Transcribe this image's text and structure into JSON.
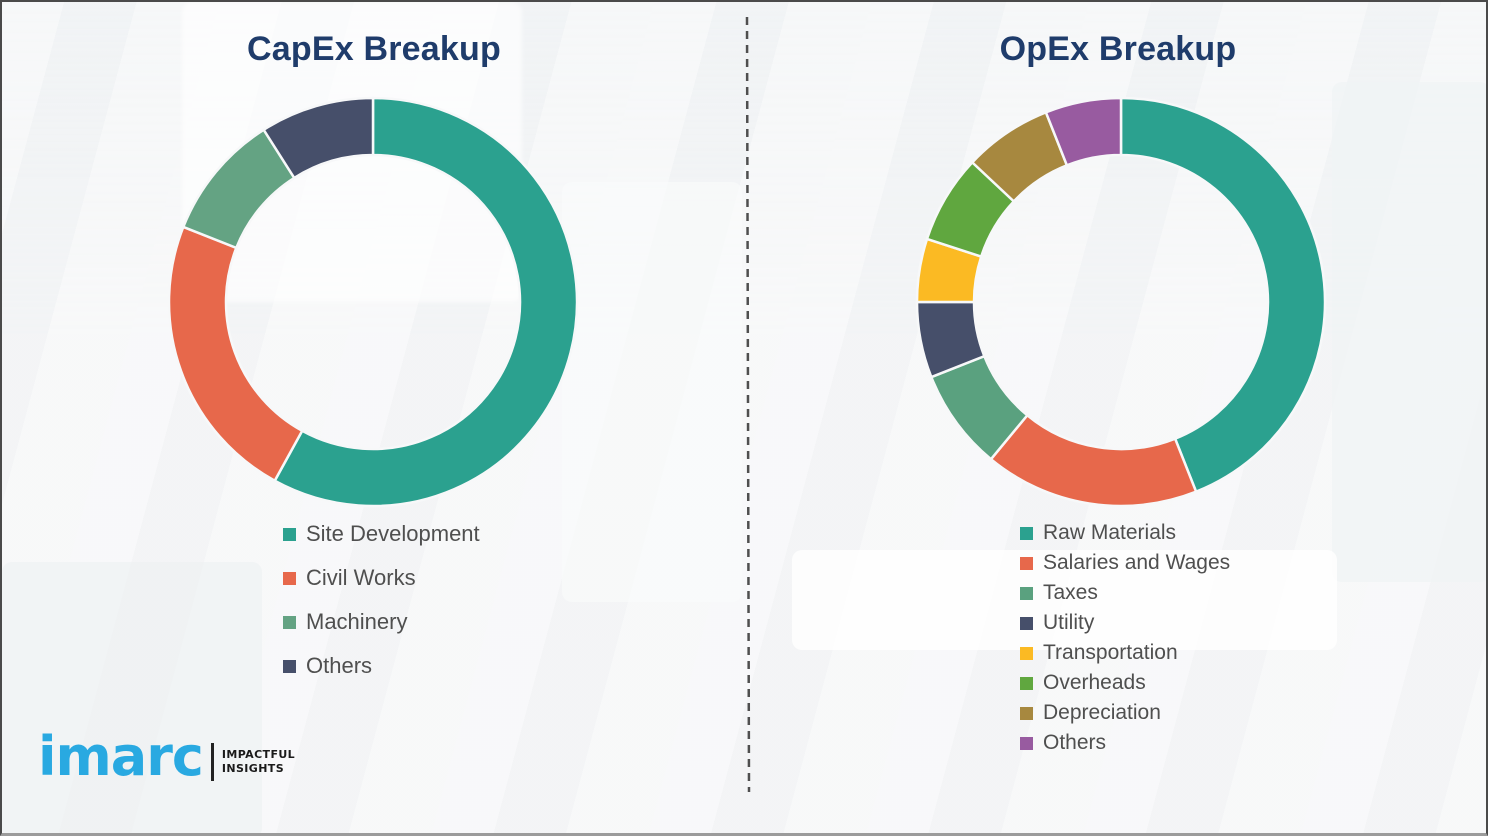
{
  "page": {
    "background_color": "#f5f6f7",
    "frame_border_color": "#4a4a4a",
    "divider_color": "#4f4f4f"
  },
  "chart_data": [
    {
      "type": "pie",
      "subtype": "donut",
      "hole_ratio": 0.72,
      "start_angle": "top",
      "direction": "clockwise",
      "title": "CapEx Breakup",
      "categories": [
        "Site Development",
        "Civil Works",
        "Machinery",
        "Others"
      ],
      "values": [
        58,
        23,
        10,
        9
      ],
      "colors": [
        "#2ba18f",
        "#e7684b",
        "#64a383",
        "#464f6a"
      ],
      "legend_position": "bottom",
      "data_labels_shown": false
    },
    {
      "type": "pie",
      "subtype": "donut",
      "hole_ratio": 0.72,
      "start_angle": "top",
      "direction": "clockwise",
      "title": "OpEx Breakup",
      "categories": [
        "Raw Materials",
        "Salaries and Wages",
        "Taxes",
        "Utility",
        "Transportation",
        "Overheads",
        "Depreciation",
        "Others"
      ],
      "values": [
        44,
        17,
        8,
        6,
        5,
        7,
        7,
        6
      ],
      "colors": [
        "#2ba18f",
        "#e7684b",
        "#5aa17f",
        "#464f6a",
        "#fbba23",
        "#60a73f",
        "#a7883f",
        "#985ba0"
      ],
      "legend_position": "bottom",
      "data_labels_shown": false
    }
  ],
  "logo": {
    "wordmark": "imarc",
    "tagline_line1": "IMPACTFUL",
    "tagline_line2": "INSIGHTS",
    "brand_color": "#29a9e1"
  }
}
